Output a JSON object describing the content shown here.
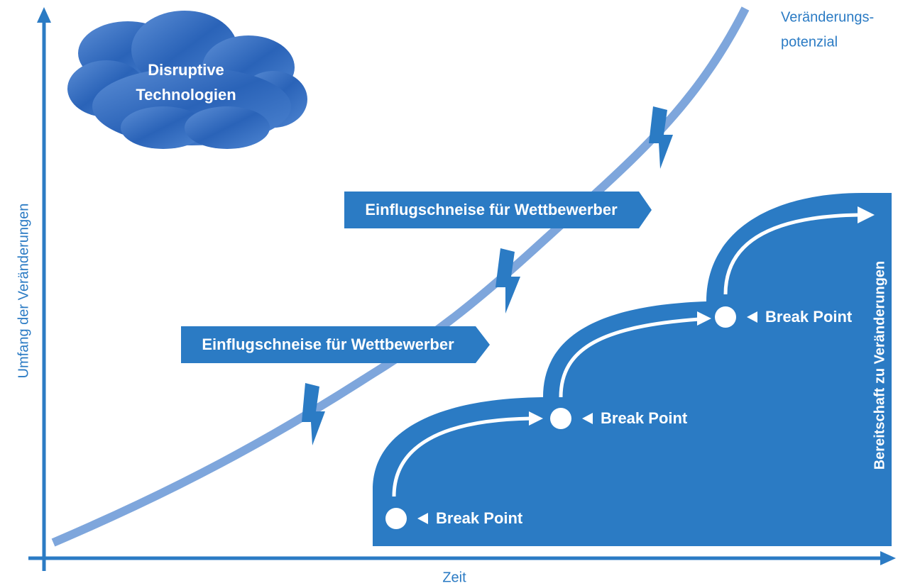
{
  "cloud": {
    "lines": [
      "Disruptive",
      "Technologien"
    ]
  },
  "curve_label": {
    "lines": [
      "Veränderungs-",
      "potenzial"
    ]
  },
  "banners": [
    "Einflugschneise für Wettbewerber",
    "Einflugschneise für Wettbewerber"
  ],
  "break_points": [
    "Break Point",
    "Break Point",
    "Break Point"
  ],
  "axes": {
    "x_label": "Zeit",
    "y_label": "Umfang der Veränderungen"
  },
  "readiness_label": "Bereitschaft zu Veränderungen"
}
